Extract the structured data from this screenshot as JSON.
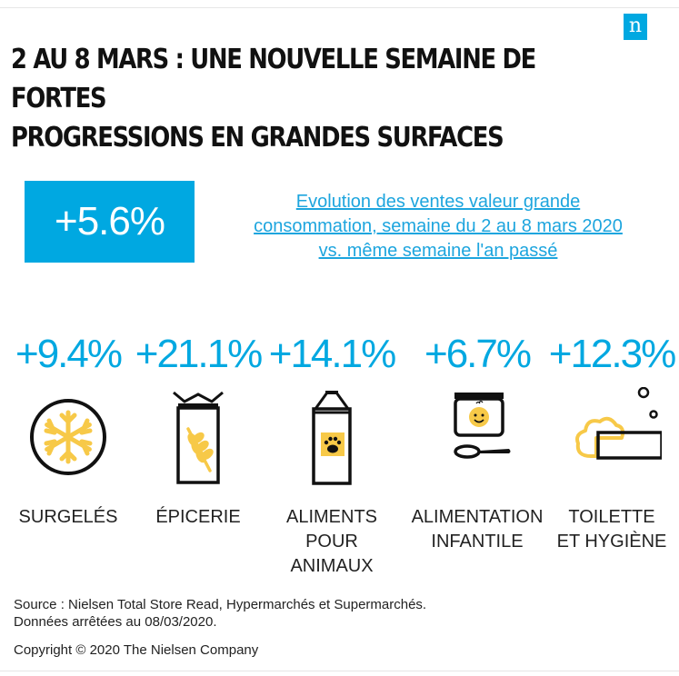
{
  "logo": "n",
  "title_lines": [
    "2 AU 8 MARS : UNE NOUVELLE SEMAINE DE FORTES",
    "PROGRESSIONS EN GRANDES SURFACES"
  ],
  "colors": {
    "accent": "#00a8e1",
    "icon_yellow": "#f7c948"
  },
  "chart_data": {
    "type": "table",
    "headline": {
      "value": "+5.6%",
      "description_lines": [
        "Evolution des ventes valeur grande",
        "consommation, semaine du 2 au 8 mars 2020",
        "vs. même semaine l'an passé"
      ]
    },
    "categories": [
      {
        "value": "+9.4%",
        "label_lines": [
          "SURGELÉS"
        ],
        "icon": "snowflake-icon"
      },
      {
        "value": "+21.1%",
        "label_lines": [
          "ÉPICERIE"
        ],
        "icon": "wheat-bag-icon"
      },
      {
        "value": "+14.1%",
        "label_lines": [
          "ALIMENTS",
          "POUR",
          "ANIMAUX"
        ],
        "icon": "pet-food-bag-icon"
      },
      {
        "value": "+6.7%",
        "label_lines": [
          "ALIMENTATION",
          "INFANTILE"
        ],
        "icon": "baby-food-jar-icon"
      },
      {
        "value": "+12.3%",
        "label_lines": [
          "TOILETTE",
          "ET HYGIÈNE"
        ],
        "icon": "soap-icon"
      }
    ]
  },
  "source_lines": [
    "Source : Nielsen Total Store Read, Hypermarchés et Supermarchés.",
    "Données arrêtées au 08/03/2020."
  ],
  "copyright": "Copyright © 2020 The Nielsen Company"
}
